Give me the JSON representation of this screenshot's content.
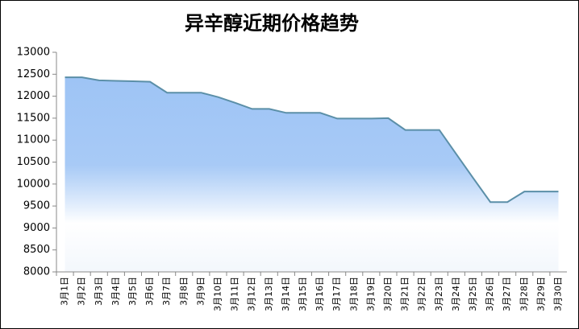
{
  "chart_data": {
    "type": "area",
    "title": "异辛醇近期价格趋势",
    "categories": [
      "3月1日",
      "3月2日",
      "3月3日",
      "3月4日",
      "3月5日",
      "3月6日",
      "3月7日",
      "3月8日",
      "3月9日",
      "3月10日",
      "3月11日",
      "3月12日",
      "3月13日",
      "3月14日",
      "3月15日",
      "3月16日",
      "3月17日",
      "3月18日",
      "3月19日",
      "3月20日",
      "3月21日",
      "3月22日",
      "3月23日",
      "3月24日",
      "3月25日",
      "3月26日",
      "3月27日",
      "3月28日",
      "3月29日",
      "3月30日"
    ],
    "values": [
      12430,
      12430,
      12360,
      12350,
      12340,
      12330,
      12080,
      12080,
      12080,
      11980,
      11850,
      11710,
      11710,
      11620,
      11620,
      11620,
      11490,
      11490,
      11490,
      11500,
      11230,
      11230,
      11230,
      10680,
      10130,
      9590,
      9590,
      9830,
      9830,
      9830
    ],
    "color": "#5b8fa8",
    "fill_top": "#9ec4f5",
    "ylim": [
      8000,
      13000
    ],
    "yticks": [
      8000,
      8500,
      9000,
      9500,
      10000,
      10500,
      11000,
      11500,
      12000,
      12500,
      13000
    ]
  }
}
